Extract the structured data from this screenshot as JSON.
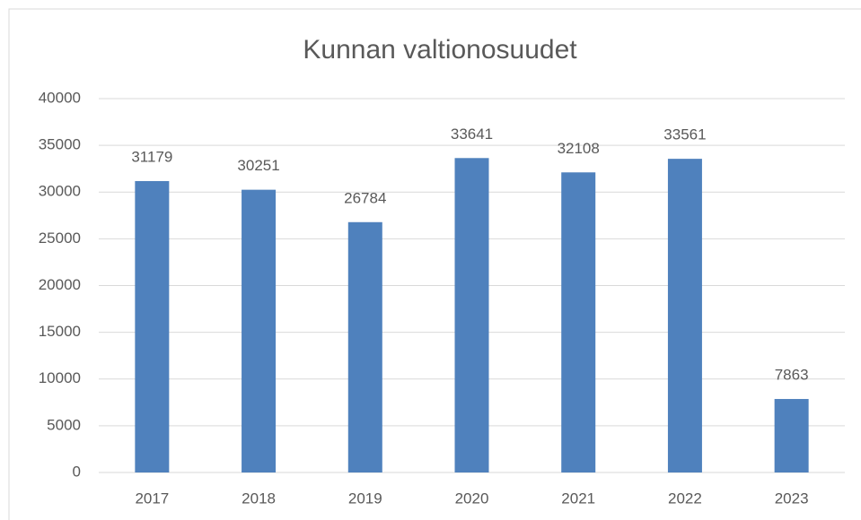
{
  "chart_data": {
    "type": "bar",
    "title": "Kunnan valtionosuudet",
    "categories": [
      "2017",
      "2018",
      "2019",
      "2020",
      "2021",
      "2022",
      "2023"
    ],
    "values": [
      31179,
      30251,
      26784,
      33641,
      32108,
      33561,
      7863
    ],
    "color": "#4f81bd",
    "ylim": [
      0,
      40000
    ],
    "yticks": [
      0,
      5000,
      10000,
      15000,
      20000,
      25000,
      30000,
      35000,
      40000
    ],
    "grid": true,
    "data_labels": true
  }
}
